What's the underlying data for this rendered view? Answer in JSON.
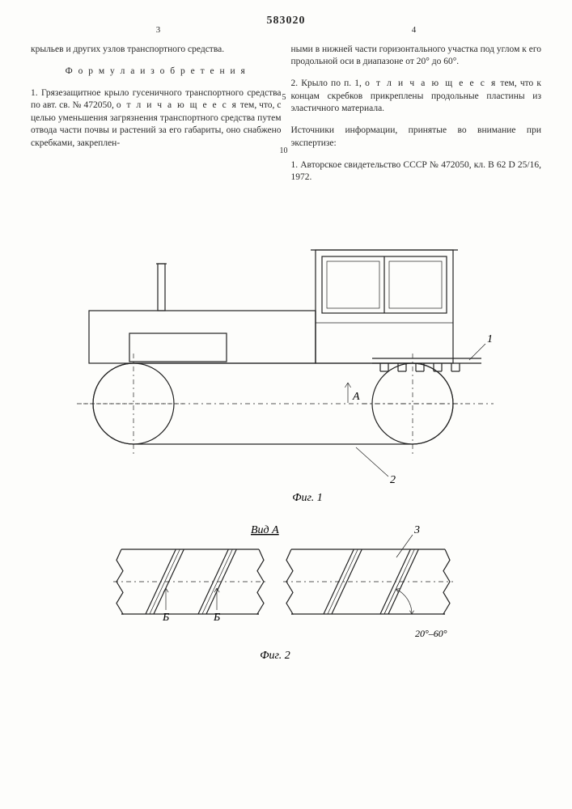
{
  "patent_number": "583020",
  "left_col_number": "3",
  "right_col_number": "4",
  "line_marker_5": "5",
  "line_marker_10": "10",
  "left_col": {
    "p1": "крыльев и других узлов транспортного средства.",
    "formula_heading": "Ф о р м у л а  и з о б р е т е н и я",
    "p2a": "1. Грязезащитное крыло гусеничного транспортного средства по авт. св. № 472050, ",
    "p2b": "о т л и ч а ю щ е е с я",
    "p2c": "  тем, что, с целью уменьшения загрязнения транспортного средства путем отвода части почвы и растений за его габариты, оно снабжено скребками, закреплен-"
  },
  "right_col": {
    "p1": "ными в нижней части горизонтального участка под углом к его продольной оси в диапазоне от 20° до 60°.",
    "p2a": "2. Крыло по п. 1, ",
    "p2b": "о т л и ч а ю щ е е с я",
    "p2c": "  тем, что к концам скребков прикреплены продольные пластины из эластичного материала.",
    "p3": "Источники информации, принятые во внимание при экспертизе:",
    "p4": "1. Авторское свидетельство СССР № 472050, кл. В 62 D 25/16, 1972."
  },
  "fig1": {
    "label": "Фиг. 1",
    "callout_1": "1",
    "callout_2": "2",
    "section_A": "А"
  },
  "fig2": {
    "heading": "Вид А",
    "label": "Фиг. 2",
    "callout_3": "3",
    "callout_B": "Б",
    "callout_B2": "Б",
    "angle_label": "20°–60°"
  },
  "style": {
    "stroke": "#222222",
    "thin": 1.2,
    "hair": 0.7,
    "dash": "6 4 2 4"
  }
}
